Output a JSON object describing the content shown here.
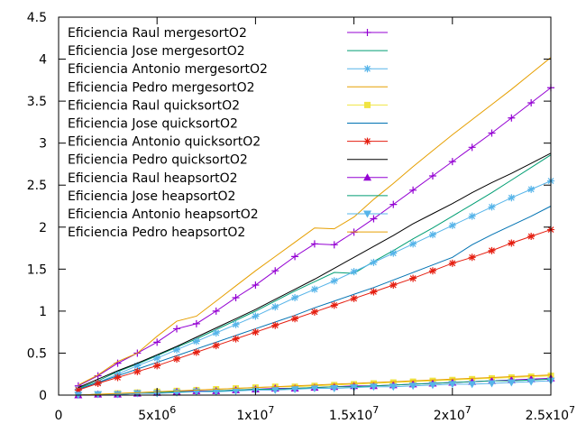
{
  "chart_data": {
    "type": "line",
    "title": "",
    "xlabel": "",
    "ylabel": "",
    "xlim": [
      0,
      25000000
    ],
    "ylim": [
      0,
      4.5
    ],
    "grid": false,
    "legend_position": "top-left",
    "x_ticks": [
      {
        "value": 0,
        "base": "0",
        "exp": ""
      },
      {
        "value": 5000000,
        "base": "5x10",
        "exp": "6"
      },
      {
        "value": 10000000,
        "base": "1x10",
        "exp": "7"
      },
      {
        "value": 15000000,
        "base": "1.5x10",
        "exp": "7"
      },
      {
        "value": 20000000,
        "base": "2x10",
        "exp": "7"
      },
      {
        "value": 25000000,
        "base": "2.5x10",
        "exp": "7"
      }
    ],
    "y_ticks": [
      "0",
      "0.5",
      "1",
      "1.5",
      "2",
      "2.5",
      "3",
      "3.5",
      "4",
      "4.5"
    ],
    "x": [
      1000000,
      2000000,
      3000000,
      4000000,
      5000000,
      6000000,
      7000000,
      8000000,
      9000000,
      10000000,
      11000000,
      12000000,
      13000000,
      14000000,
      15000000,
      16000000,
      17000000,
      18000000,
      19000000,
      20000000,
      21000000,
      22000000,
      23000000,
      24000000,
      25000000
    ],
    "series": [
      {
        "name": "Eficiencia Raul mergesortO2",
        "color": "#9400d3",
        "marker": "plus",
        "values": [
          0.11,
          0.23,
          0.38,
          0.5,
          0.63,
          0.79,
          0.85,
          1.0,
          1.16,
          1.31,
          1.48,
          1.65,
          1.8,
          1.79,
          1.94,
          2.1,
          2.27,
          2.44,
          2.61,
          2.78,
          2.95,
          3.12,
          3.3,
          3.48,
          3.66
        ]
      },
      {
        "name": "Eficiencia Jose mergesortO2",
        "color": "#009e73",
        "marker": "none",
        "values": [
          0.08,
          0.17,
          0.28,
          0.37,
          0.47,
          0.57,
          0.67,
          0.78,
          0.89,
          1.0,
          1.12,
          1.24,
          1.35,
          1.46,
          1.45,
          1.59,
          1.72,
          1.86,
          1.99,
          2.13,
          2.27,
          2.41,
          2.56,
          2.71,
          2.86
        ]
      },
      {
        "name": "Eficiencia Antonio mergesortO2",
        "color": "#56b4e9",
        "marker": "star",
        "values": [
          0.07,
          0.15,
          0.25,
          0.35,
          0.44,
          0.54,
          0.64,
          0.74,
          0.84,
          0.94,
          1.05,
          1.16,
          1.26,
          1.36,
          1.47,
          1.58,
          1.69,
          1.8,
          1.91,
          2.02,
          2.13,
          2.24,
          2.35,
          2.45,
          2.55
        ]
      },
      {
        "name": "Eficiencia Pedro mergesortO2",
        "color": "#e69f00",
        "marker": "none",
        "values": [
          0.12,
          0.24,
          0.4,
          0.5,
          0.7,
          0.88,
          0.94,
          1.12,
          1.3,
          1.48,
          1.65,
          1.82,
          1.99,
          1.98,
          2.12,
          2.33,
          2.52,
          2.72,
          2.91,
          3.1,
          3.28,
          3.46,
          3.64,
          3.83,
          4.02
        ]
      },
      {
        "name": "Eficiencia Raul quicksortO2",
        "color": "#f0e442",
        "marker": "square",
        "values": [
          0.0,
          0.01,
          0.02,
          0.03,
          0.04,
          0.05,
          0.06,
          0.07,
          0.08,
          0.09,
          0.1,
          0.1,
          0.11,
          0.12,
          0.13,
          0.14,
          0.15,
          0.16,
          0.17,
          0.18,
          0.19,
          0.2,
          0.21,
          0.22,
          0.23
        ]
      },
      {
        "name": "Eficiencia Jose quicksortO2",
        "color": "#0072b2",
        "marker": "none",
        "values": [
          0.07,
          0.15,
          0.23,
          0.31,
          0.39,
          0.47,
          0.55,
          0.63,
          0.71,
          0.79,
          0.87,
          0.95,
          1.04,
          1.12,
          1.2,
          1.28,
          1.37,
          1.46,
          1.55,
          1.64,
          1.79,
          1.91,
          2.02,
          2.13,
          2.25
        ]
      },
      {
        "name": "Eficiencia Antonio quicksortO2",
        "color": "#e51e10",
        "marker": "star",
        "values": [
          0.06,
          0.14,
          0.21,
          0.28,
          0.35,
          0.43,
          0.51,
          0.59,
          0.67,
          0.75,
          0.83,
          0.91,
          0.99,
          1.07,
          1.15,
          1.23,
          1.31,
          1.39,
          1.48,
          1.57,
          1.64,
          1.72,
          1.81,
          1.89,
          1.97
        ]
      },
      {
        "name": "Eficiencia Pedro quicksortO2",
        "color": "#000000",
        "marker": "none",
        "values": [
          0.09,
          0.19,
          0.29,
          0.38,
          0.48,
          0.58,
          0.69,
          0.8,
          0.91,
          1.02,
          1.14,
          1.26,
          1.38,
          1.51,
          1.64,
          1.77,
          1.9,
          2.04,
          2.16,
          2.28,
          2.41,
          2.53,
          2.64,
          2.76,
          2.88
        ]
      },
      {
        "name": "Eficiencia Raul heapsortO2",
        "color": "#9400d3",
        "marker": "triangle-up",
        "values": [
          0.0,
          0.01,
          0.01,
          0.02,
          0.03,
          0.04,
          0.05,
          0.05,
          0.06,
          0.07,
          0.08,
          0.08,
          0.09,
          0.1,
          0.11,
          0.11,
          0.12,
          0.13,
          0.14,
          0.15,
          0.16,
          0.17,
          0.18,
          0.19,
          0.2
        ]
      },
      {
        "name": "Eficiencia Jose heapsortO2",
        "color": "#009e73",
        "marker": "none",
        "values": [
          0.0,
          0.01,
          0.01,
          0.02,
          0.03,
          0.04,
          0.04,
          0.05,
          0.06,
          0.07,
          0.07,
          0.08,
          0.09,
          0.1,
          0.1,
          0.11,
          0.12,
          0.13,
          0.14,
          0.15,
          0.16,
          0.17,
          0.17,
          0.18,
          0.19
        ]
      },
      {
        "name": "Eficiencia Antonio heapsortO2",
        "color": "#56b4e9",
        "marker": "triangle-down",
        "values": [
          0.0,
          0.01,
          0.01,
          0.02,
          0.02,
          0.03,
          0.04,
          0.04,
          0.05,
          0.06,
          0.06,
          0.07,
          0.08,
          0.08,
          0.09,
          0.1,
          0.1,
          0.11,
          0.12,
          0.13,
          0.13,
          0.14,
          0.15,
          0.16,
          0.17
        ]
      },
      {
        "name": "Eficiencia Pedro heapsortO2",
        "color": "#e69f00",
        "marker": "none",
        "values": [
          0.0,
          0.01,
          0.02,
          0.03,
          0.04,
          0.05,
          0.06,
          0.07,
          0.08,
          0.09,
          0.1,
          0.11,
          0.12,
          0.13,
          0.14,
          0.15,
          0.16,
          0.17,
          0.18,
          0.19,
          0.2,
          0.21,
          0.22,
          0.23,
          0.24
        ]
      }
    ]
  }
}
